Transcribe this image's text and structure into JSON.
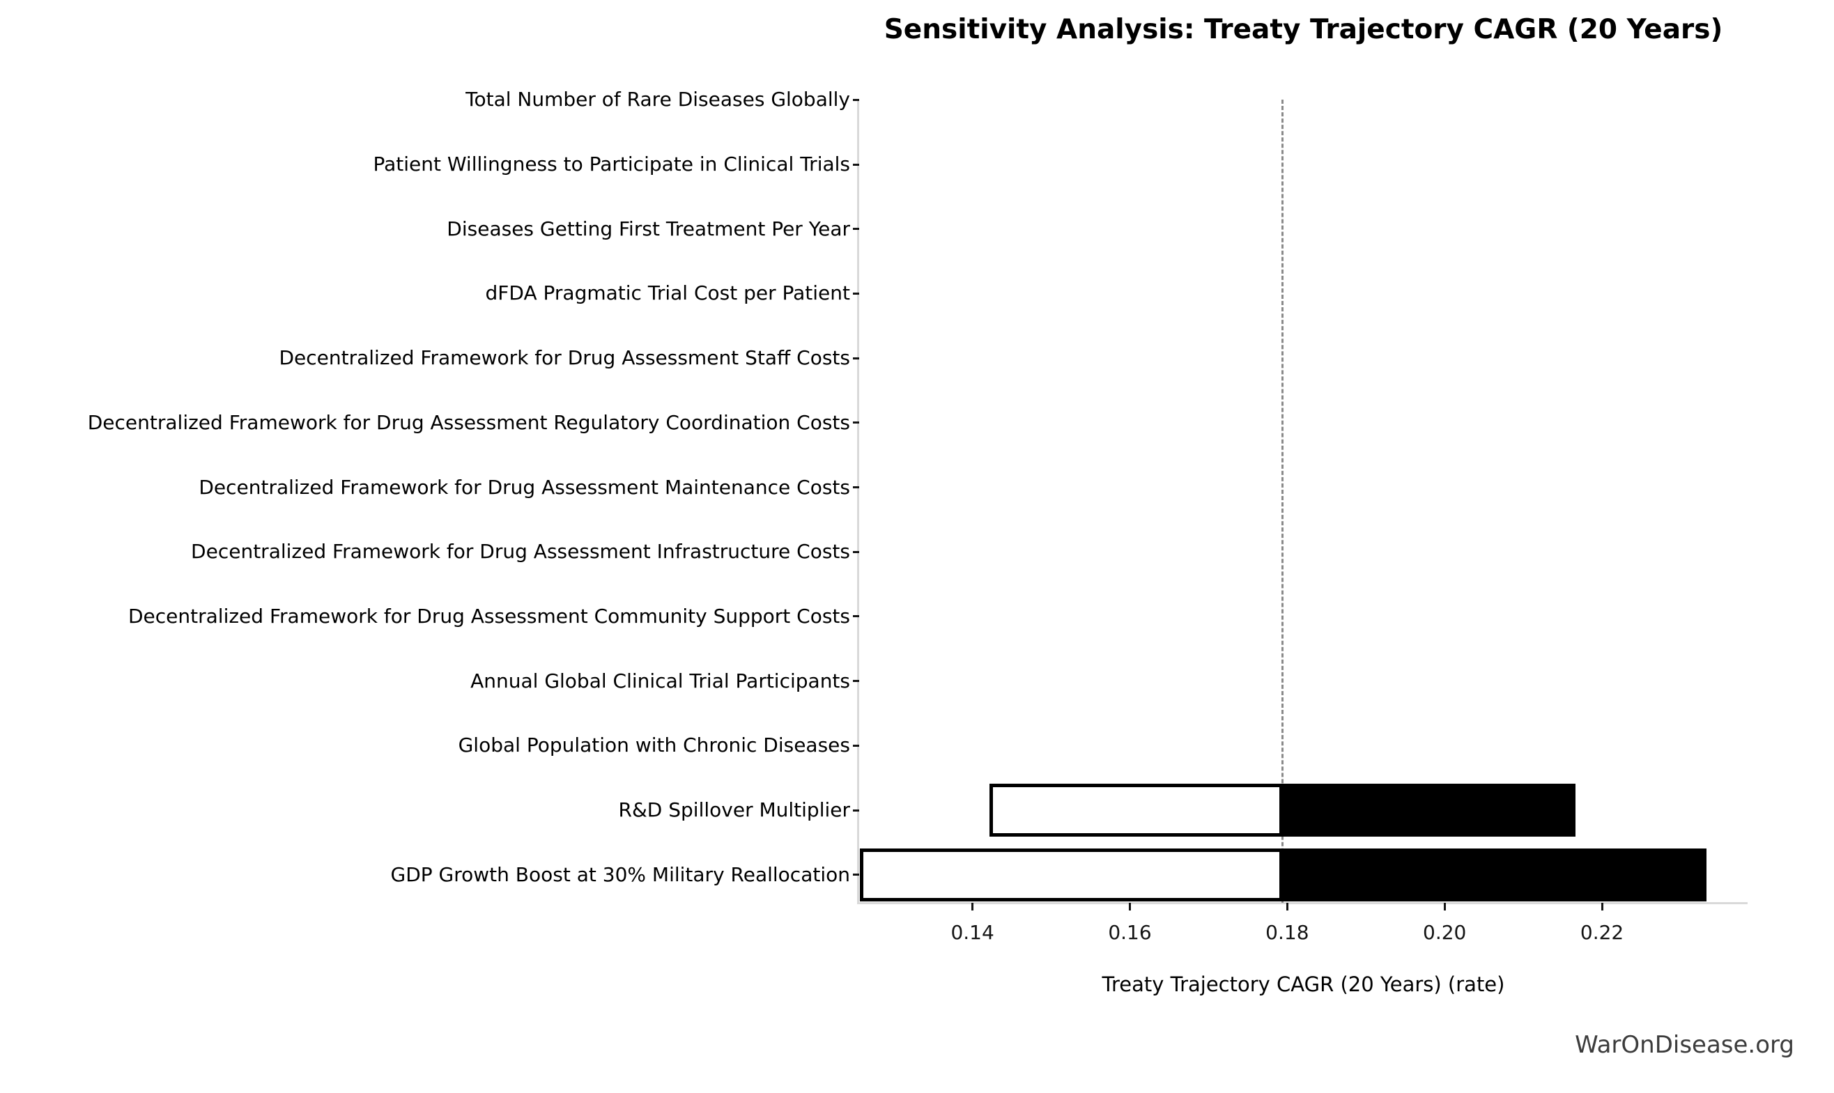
{
  "title": "Sensitivity Analysis: Treaty Trajectory CAGR (20 Years)",
  "watermark": "WarOnDisease.org",
  "chart_data": {
    "type": "bar",
    "subtype": "tornado-sensitivity",
    "orientation": "horizontal",
    "title": "Sensitivity Analysis: Treaty Trajectory CAGR (20 Years)",
    "xlabel": "Treaty Trajectory CAGR (20 Years) (rate)",
    "ylabel": "",
    "grid": false,
    "legend": "none",
    "base_value": 0.1794,
    "xlim": [
      0.1256,
      0.2385
    ],
    "xticks": [
      0.14,
      0.16,
      0.18,
      0.2,
      0.22
    ],
    "xtick_labels": [
      "0.14",
      "0.16",
      "0.18",
      "0.20",
      "0.22"
    ],
    "bar_colors": {
      "low_side": "#ffffff",
      "high_side": "#000000",
      "edge": "#000000"
    },
    "categories": [
      {
        "label": "Total Number of Rare Diseases Globally",
        "low": null,
        "high": null
      },
      {
        "label": "Patient Willingness to Participate in Clinical Trials",
        "low": null,
        "high": null
      },
      {
        "label": "Diseases Getting First Treatment Per Year",
        "low": null,
        "high": null
      },
      {
        "label": "dFDA Pragmatic Trial Cost per Patient",
        "low": null,
        "high": null
      },
      {
        "label": "Decentralized Framework for Drug Assessment Staff Costs",
        "low": null,
        "high": null
      },
      {
        "label": "Decentralized Framework for Drug Assessment Regulatory Coordination Costs",
        "low": null,
        "high": null
      },
      {
        "label": "Decentralized Framework for Drug Assessment Maintenance Costs",
        "low": null,
        "high": null
      },
      {
        "label": "Decentralized Framework for Drug Assessment Infrastructure Costs",
        "low": null,
        "high": null
      },
      {
        "label": "Decentralized Framework for Drug Assessment Community Support Costs",
        "low": null,
        "high": null
      },
      {
        "label": "Annual Global Clinical Trial Participants",
        "low": null,
        "high": null
      },
      {
        "label": "Global Population with Chronic Diseases",
        "low": null,
        "high": null
      },
      {
        "label": "R&D Spillover Multiplier",
        "low": 0.1422,
        "high": 0.2166
      },
      {
        "label": "GDP Growth Boost at 30% Military Reallocation",
        "low": 0.1257,
        "high": 0.2333
      }
    ]
  }
}
